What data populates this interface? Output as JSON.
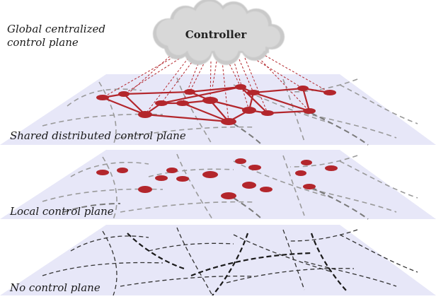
{
  "controller": {
    "label": "Controller"
  },
  "layers": {
    "global": {
      "label": "Global centralized control plane"
    },
    "shared": {
      "label": "Shared distributed control plane"
    },
    "local": {
      "label": "Local control plane"
    },
    "none": {
      "label": "No control plane"
    }
  },
  "colors": {
    "plane": "#e6e6f7",
    "node": "#b3262c",
    "link": "#b3262c",
    "dash_gray": "#9a9a9a",
    "dash_dark": "#333333",
    "cloud": "#d3d3d3"
  },
  "icons": [
    "cloud-icon"
  ]
}
